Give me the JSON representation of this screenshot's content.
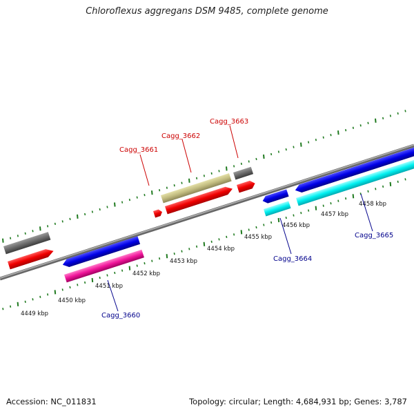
{
  "title": "Chloroflexus aggregans DSM 9485, complete genome",
  "footer": {
    "accession": "Accession: NC_011831",
    "stats": "Topology: circular; Length: 4,684,931 bp; Genes: 3,787"
  },
  "colors": {
    "backbone": "#8a8a8a",
    "tick": "#1f7a1f",
    "label_top": "#cc0000",
    "label_bottom": "#00008b"
  },
  "scale": {
    "kbp_labels": [
      "4449 kbp",
      "4450 kbp",
      "4451 kbp",
      "4452 kbp",
      "4453 kbp",
      "4454 kbp",
      "4455 kbp",
      "4456 kbp",
      "4457 kbp",
      "4458 kbp"
    ]
  },
  "gene_labels": {
    "top": [
      "Cagg_3661",
      "Cagg_3662",
      "Cagg_3663"
    ],
    "bottom": [
      "Cagg_3660",
      "Cagg_3664",
      "Cagg_3665"
    ]
  }
}
